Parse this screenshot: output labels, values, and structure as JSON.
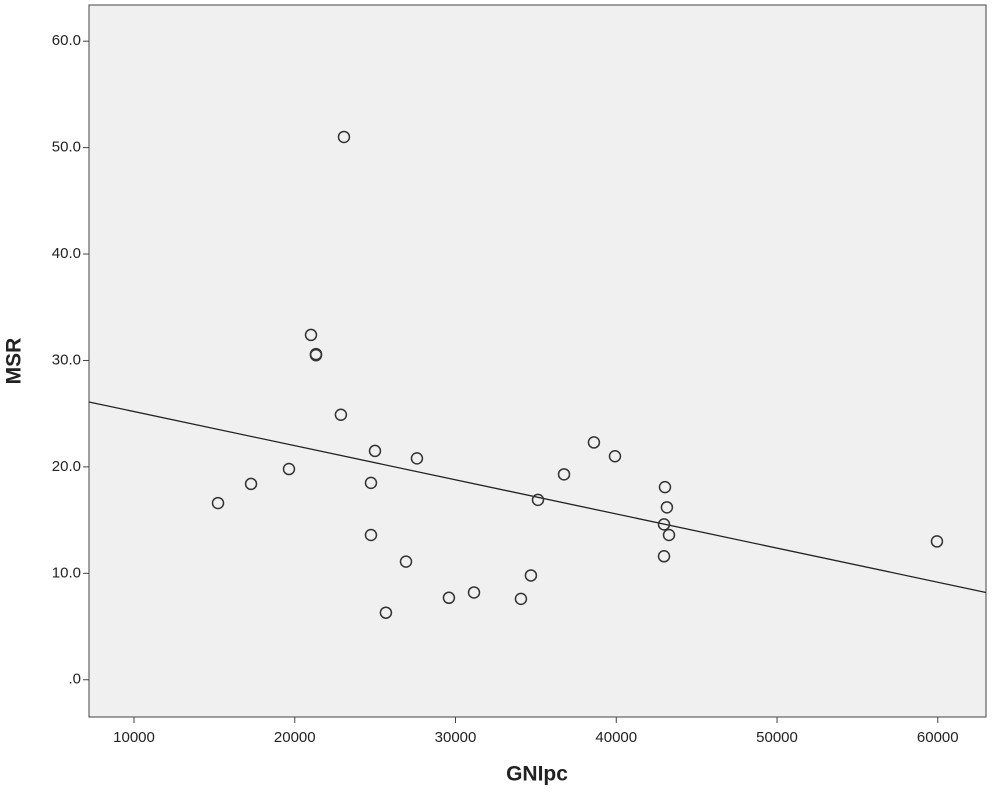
{
  "chart_data": {
    "type": "scatter",
    "x_label": "GNIpc",
    "y_label": "MSR",
    "x": [
      15225,
      17280,
      19640,
      21010,
      21320,
      21320,
      23060,
      22870,
      24990,
      24740,
      24740,
      26920,
      25670,
      27600,
      29590,
      31150,
      34070,
      34690,
      35130,
      36750,
      38610,
      39920,
      43030,
      43150,
      42970,
      43280,
      42970,
      59950
    ],
    "values": [
      16.6,
      18.4,
      19.8,
      32.4,
      30.6,
      30.5,
      51.0,
      24.9,
      21.5,
      18.5,
      13.6,
      11.1,
      6.3,
      20.8,
      7.7,
      8.2,
      7.6,
      9.8,
      16.9,
      19.3,
      22.3,
      21.0,
      18.1,
      16.2,
      14.6,
      13.6,
      11.6,
      13.0
    ],
    "fit_line": {
      "x": [
        7200,
        63000
      ],
      "y": [
        26.1,
        8.2
      ]
    },
    "xlim": [
      7200,
      63000
    ],
    "ylim": [
      -3.5,
      63.4
    ],
    "xticks": [
      10000,
      20000,
      30000,
      40000,
      50000,
      60000
    ],
    "yticks": [
      {
        "value": 0,
        "label": ".0"
      },
      {
        "value": 10,
        "label": "10.0"
      },
      {
        "value": 20,
        "label": "20.0"
      },
      {
        "value": 30,
        "label": "30.0"
      },
      {
        "value": 40,
        "label": "40.0"
      },
      {
        "value": 50,
        "label": "50.0"
      },
      {
        "value": 60,
        "label": "60.0"
      }
    ],
    "color": "#333333",
    "background": "#f0f0f0"
  }
}
